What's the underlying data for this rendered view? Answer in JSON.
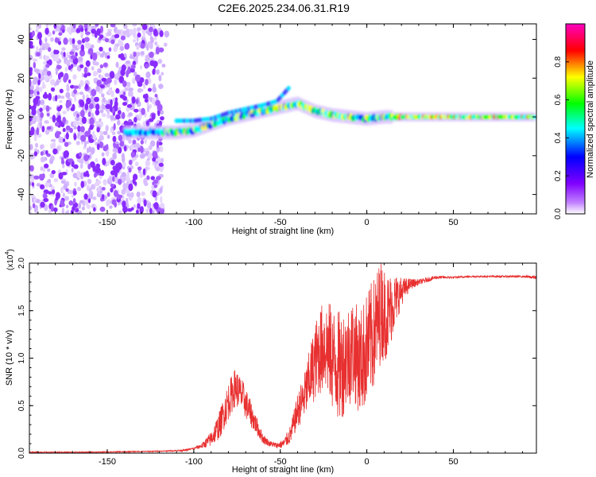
{
  "page_title": "C2E6.2025.234.06.31.R19",
  "chart_data": [
    {
      "type": "heatmap",
      "xlabel": "Height of straight line (km)",
      "ylabel": "Frequency (Hz)",
      "xlim": [
        -195,
        98
      ],
      "ylim": [
        -50,
        48
      ],
      "xticks": [
        -150,
        -100,
        -50,
        0,
        50
      ],
      "yticks": [
        -40,
        -20,
        0,
        20,
        40
      ],
      "noise_region_x": [
        -195,
        -118
      ],
      "ridge": {
        "x": [
          -140,
          -130,
          -125,
          -120,
          -110,
          -100,
          -90,
          -80,
          -70,
          -60,
          -50,
          -40,
          -30,
          -20,
          -10,
          0,
          10,
          20,
          40,
          60,
          80,
          97
        ],
        "y": [
          -8,
          -8,
          -8,
          -8,
          -8,
          -7,
          -4,
          -1,
          1,
          3,
          5,
          7,
          3,
          1,
          0,
          -1,
          0,
          0,
          0,
          0,
          0,
          0
        ]
      },
      "ridge_upper_branch": {
        "x": [
          -110,
          -100,
          -90,
          -80,
          -70,
          -60,
          -52,
          -45
        ],
        "y": [
          -2,
          -2,
          -1,
          2,
          4,
          6,
          8,
          15
        ]
      },
      "colorbar": {
        "label": "Normalized spectral amplitude",
        "range": [
          0.0,
          1.0
        ],
        "ticks": [
          "0.0",
          "0.2",
          "0.4",
          "0.6",
          "0.8"
        ],
        "colors": [
          "#ffffff",
          "#8000ff",
          "#0000ff",
          "#00ffff",
          "#00ff00",
          "#ffff00",
          "#ff0000",
          "#ff00c0"
        ]
      }
    },
    {
      "type": "line",
      "xlabel": "Height of straight line (km)",
      "ylabel": "SNR (10 * v/v)",
      "y_multiplier": "(x10",
      "y_multiplier_exp": "4",
      "xlim": [
        -195,
        98
      ],
      "ylim": [
        0,
        2.0
      ],
      "xticks": [
        -150,
        -100,
        -50,
        0,
        50
      ],
      "yticks": [
        "0.0",
        "0.5",
        "1.0",
        "1.5",
        "2.0"
      ],
      "color": "#e83030",
      "series": [
        {
          "x": [
            -195,
            -160,
            -120,
            -105,
            -100,
            -95,
            -90,
            -85,
            -80,
            -76,
            -72,
            -68,
            -64,
            -60,
            -56,
            -52,
            -48,
            -44,
            -40,
            -36,
            -32,
            -28,
            -24,
            -20,
            -16,
            -12,
            -8,
            -4,
            0,
            4,
            8,
            12,
            16,
            20,
            25,
            30,
            40,
            50,
            60,
            70,
            80,
            90,
            97
          ],
          "y": [
            0.01,
            0.01,
            0.02,
            0.03,
            0.05,
            0.08,
            0.15,
            0.3,
            0.55,
            0.7,
            0.6,
            0.45,
            0.3,
            0.15,
            0.1,
            0.08,
            0.1,
            0.2,
            0.45,
            0.6,
            0.85,
            1.05,
            1.15,
            1.0,
            0.9,
            1.0,
            1.1,
            0.95,
            1.1,
            1.25,
            1.5,
            1.45,
            1.6,
            1.7,
            1.78,
            1.8,
            1.85,
            1.85,
            1.86,
            1.86,
            1.86,
            1.86,
            1.85
          ],
          "spread": [
            0.005,
            0.005,
            0.005,
            0.01,
            0.01,
            0.03,
            0.08,
            0.15,
            0.2,
            0.2,
            0.18,
            0.15,
            0.1,
            0.05,
            0.03,
            0.03,
            0.05,
            0.1,
            0.18,
            0.25,
            0.35,
            0.45,
            0.5,
            0.55,
            0.6,
            0.55,
            0.55,
            0.55,
            0.6,
            0.6,
            0.55,
            0.45,
            0.3,
            0.15,
            0.06,
            0.03,
            0.02,
            0.01,
            0.01,
            0.01,
            0.01,
            0.01,
            0.02
          ]
        }
      ]
    }
  ]
}
